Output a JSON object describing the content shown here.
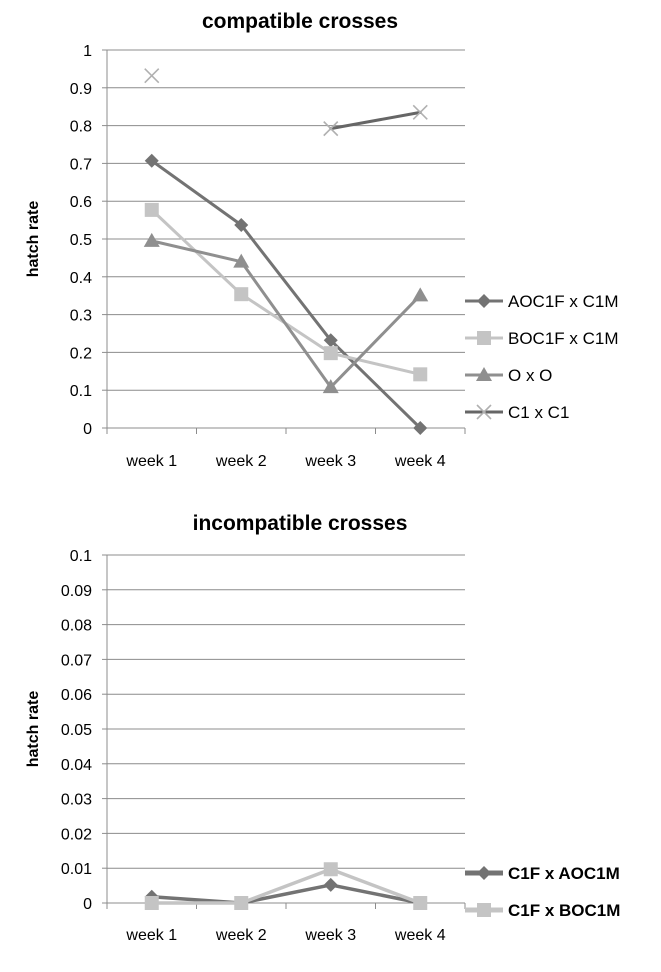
{
  "chart_data": [
    {
      "type": "line",
      "title": "compatible crosses",
      "xlabel": "",
      "ylabel": "hatch rate",
      "categories": [
        "week 1",
        "week 2",
        "week 3",
        "week 4"
      ],
      "ylim": [
        0,
        1
      ],
      "yticks": [
        "0",
        "0.1",
        "0.2",
        "0.3",
        "0.4",
        "0.5",
        "0.6",
        "0.7",
        "0.8",
        "0.9",
        "1"
      ],
      "grid": true,
      "legend_position": "right",
      "series": [
        {
          "name": "AOC1F x C1M",
          "marker": "diamond",
          "color": "#737373",
          "values": [
            0.707,
            0.537,
            0.232,
            0.0
          ]
        },
        {
          "name": "BOC1F x C1M",
          "marker": "square",
          "color": "#c4c4c4",
          "values": [
            0.577,
            0.354,
            0.198,
            0.142
          ]
        },
        {
          "name": "O x O",
          "marker": "triangle",
          "color": "#8f8f8f",
          "values": [
            0.495,
            0.44,
            0.108,
            0.351
          ]
        },
        {
          "name": "C1 x C1",
          "marker": "x",
          "color": "#666666",
          "values": [
            0.932,
            null,
            0.792,
            0.835
          ]
        }
      ]
    },
    {
      "type": "line",
      "title": "incompatible crosses",
      "xlabel": "",
      "ylabel": "hatch rate",
      "categories": [
        "week 1",
        "week 2",
        "week 3",
        "week 4"
      ],
      "ylim": [
        0,
        0.1
      ],
      "yticks": [
        "0",
        "0.01",
        "0.02",
        "0.03",
        "0.04",
        "0.05",
        "0.06",
        "0.07",
        "0.08",
        "0.09",
        "0.1"
      ],
      "grid": true,
      "legend_position": "right",
      "series": [
        {
          "name": "C1F x AOC1M",
          "marker": "diamond",
          "color": "#737373",
          "values": [
            0.0018,
            0.0,
            0.0052,
            0.0
          ]
        },
        {
          "name": "C1F x BOC1M",
          "marker": "square",
          "color": "#c4c4c4",
          "values": [
            0.0,
            0.0,
            0.0097,
            0.0
          ]
        }
      ]
    }
  ]
}
